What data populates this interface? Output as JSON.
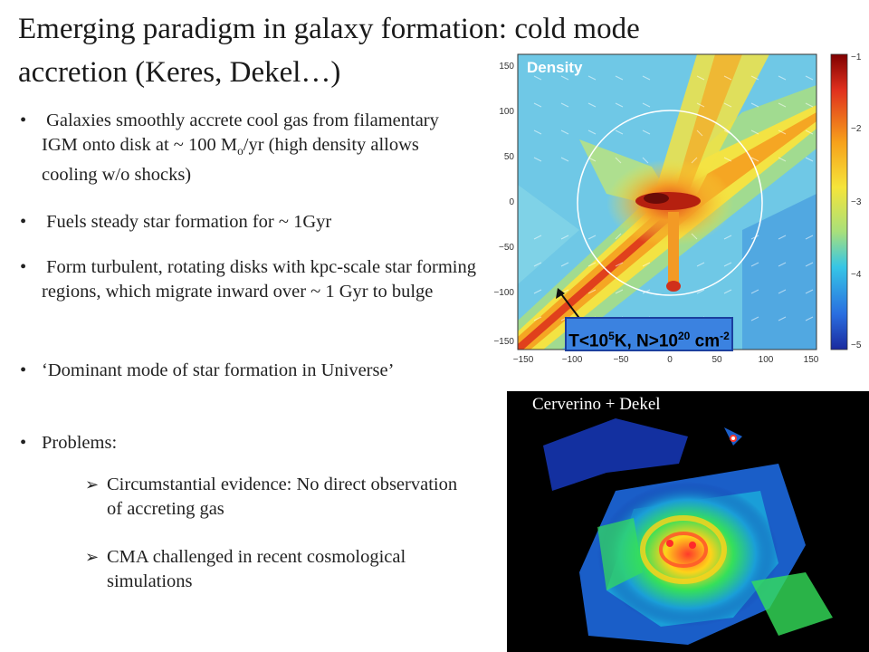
{
  "title": "Emerging paradigm in galaxy formation: cold mode accretion (Keres, Dekel…)",
  "bullets": [
    {
      "pre": "Galaxies smoothly accrete cool gas from filamentary IGM onto disk at ~ 100 M",
      "sub": "o",
      "post": "/yr (high density allows cooling w/o shocks)"
    },
    {
      "text": "Fuels steady star formation for ~ 1Gyr"
    },
    {
      "text": "Form turbulent, rotating disks with kpc-scale star forming regions, which migrate inward over ~ 1  Gyr to bulge"
    },
    {
      "text": "‘Dominant mode of star formation in Universe’"
    },
    {
      "text": "Problems:"
    }
  ],
  "sub_bullets": [
    "Circumstantial evidence: No direct observation of accreting gas",
    "CMA challenged in recent cosmological simulations"
  ],
  "density_plot": {
    "label": "Density",
    "x_ticks": [
      "−150",
      "−100",
      "−50",
      "0",
      "50",
      "100",
      "150"
    ],
    "y_ticks": [
      "150",
      "100",
      "50",
      "0",
      "−50",
      "−100",
      "−150"
    ],
    "colorbar_ticks": [
      "−1",
      "−2",
      "−3",
      "−4",
      "−5"
    ]
  },
  "label_box": {
    "t": "T<10",
    "t_exp": "5",
    "k": "K, N>10",
    "n_exp": "20",
    "unit": " cm",
    "unit_exp": "-2"
  },
  "sim_panel": {
    "credit": "Cerverino + Dekel"
  },
  "colors": {
    "arrow": "#1b3f9e",
    "label_box": "#3b82e0"
  }
}
